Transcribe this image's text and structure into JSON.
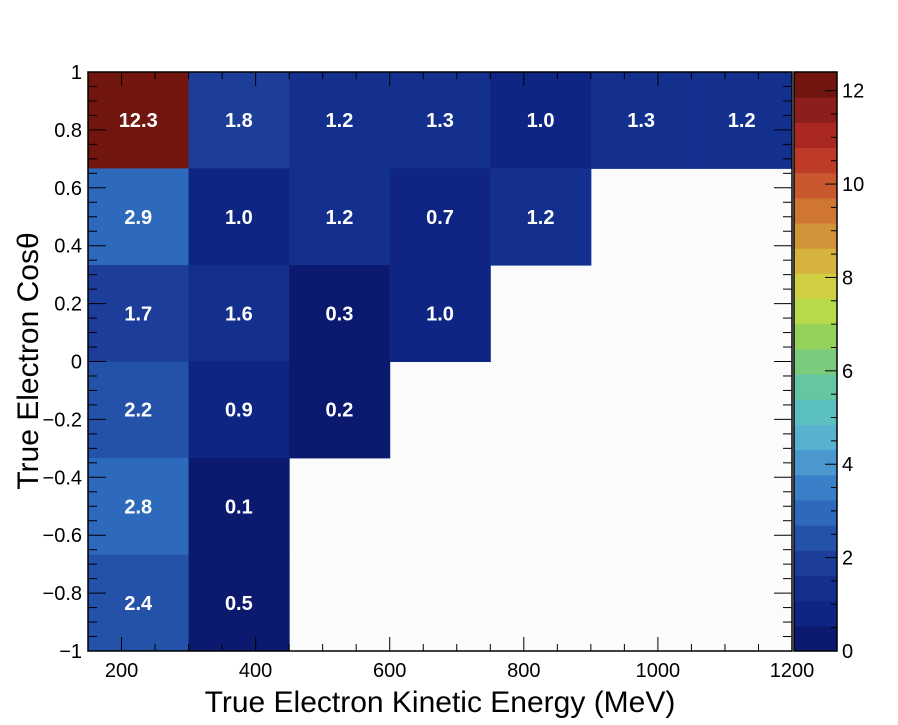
{
  "chart_data": {
    "type": "heatmap",
    "xlabel": "True Electron Kinetic Energy (MeV)",
    "ylabel": "True Electron Cosθ",
    "xlim": [
      150,
      1200
    ],
    "ylim": [
      -1,
      1
    ],
    "x_ticks": [
      "200",
      "400",
      "600",
      "800",
      "1000",
      "1200"
    ],
    "y_ticks": [
      "−1",
      "−0.8",
      "−0.6",
      "−0.4",
      "−0.2",
      "0",
      "0.2",
      "0.4",
      "0.6",
      "0.8",
      "1"
    ],
    "colorbar": {
      "range": [
        0,
        12.4
      ],
      "ticks": [
        "0",
        "2",
        "4",
        "6",
        "8",
        "10",
        "12"
      ]
    },
    "x_bin_edges": [
      150,
      300,
      450,
      600,
      750,
      900,
      1050,
      1200
    ],
    "y_bin_edges": [
      -1,
      -0.667,
      -0.333,
      0,
      0.333,
      0.667,
      1
    ],
    "cells": [
      {
        "x_bin": [
          150,
          300
        ],
        "y_bin": [
          0.667,
          1
        ],
        "value": 12.3,
        "label": "12.3"
      },
      {
        "x_bin": [
          300,
          450
        ],
        "y_bin": [
          0.667,
          1
        ],
        "value": 1.8,
        "label": "1.8"
      },
      {
        "x_bin": [
          450,
          600
        ],
        "y_bin": [
          0.667,
          1
        ],
        "value": 1.2,
        "label": "1.2"
      },
      {
        "x_bin": [
          600,
          750
        ],
        "y_bin": [
          0.667,
          1
        ],
        "value": 1.3,
        "label": "1.3"
      },
      {
        "x_bin": [
          750,
          900
        ],
        "y_bin": [
          0.667,
          1
        ],
        "value": 1.0,
        "label": "1.0"
      },
      {
        "x_bin": [
          900,
          1050
        ],
        "y_bin": [
          0.667,
          1
        ],
        "value": 1.3,
        "label": "1.3"
      },
      {
        "x_bin": [
          1050,
          1200
        ],
        "y_bin": [
          0.667,
          1
        ],
        "value": 1.2,
        "label": "1.2"
      },
      {
        "x_bin": [
          150,
          300
        ],
        "y_bin": [
          0.333,
          0.667
        ],
        "value": 2.9,
        "label": "2.9"
      },
      {
        "x_bin": [
          300,
          450
        ],
        "y_bin": [
          0.333,
          0.667
        ],
        "value": 1.0,
        "label": "1.0"
      },
      {
        "x_bin": [
          450,
          600
        ],
        "y_bin": [
          0.333,
          0.667
        ],
        "value": 1.2,
        "label": "1.2"
      },
      {
        "x_bin": [
          600,
          750
        ],
        "y_bin": [
          0.333,
          0.667
        ],
        "value": 0.7,
        "label": "0.7"
      },
      {
        "x_bin": [
          750,
          900
        ],
        "y_bin": [
          0.333,
          0.667
        ],
        "value": 1.2,
        "label": "1.2"
      },
      {
        "x_bin": [
          150,
          300
        ],
        "y_bin": [
          0,
          0.333
        ],
        "value": 1.7,
        "label": "1.7"
      },
      {
        "x_bin": [
          300,
          450
        ],
        "y_bin": [
          0,
          0.333
        ],
        "value": 1.6,
        "label": "1.6"
      },
      {
        "x_bin": [
          450,
          600
        ],
        "y_bin": [
          0,
          0.333
        ],
        "value": 0.3,
        "label": "0.3"
      },
      {
        "x_bin": [
          600,
          750
        ],
        "y_bin": [
          0,
          0.333
        ],
        "value": 1.0,
        "label": "1.0"
      },
      {
        "x_bin": [
          150,
          300
        ],
        "y_bin": [
          -0.333,
          0
        ],
        "value": 2.2,
        "label": "2.2"
      },
      {
        "x_bin": [
          300,
          450
        ],
        "y_bin": [
          -0.333,
          0
        ],
        "value": 0.9,
        "label": "0.9"
      },
      {
        "x_bin": [
          450,
          600
        ],
        "y_bin": [
          -0.333,
          0
        ],
        "value": 0.2,
        "label": "0.2"
      },
      {
        "x_bin": [
          150,
          300
        ],
        "y_bin": [
          -0.667,
          -0.333
        ],
        "value": 2.8,
        "label": "2.8"
      },
      {
        "x_bin": [
          300,
          450
        ],
        "y_bin": [
          -0.667,
          -0.333
        ],
        "value": 0.1,
        "label": "0.1"
      },
      {
        "x_bin": [
          150,
          300
        ],
        "y_bin": [
          -1,
          -0.667
        ],
        "value": 2.4,
        "label": "2.4"
      },
      {
        "x_bin": [
          300,
          450
        ],
        "y_bin": [
          -1,
          -0.667
        ],
        "value": 0.5,
        "label": "0.5"
      }
    ],
    "palette": [
      "#0b1a6e",
      "#0e2583",
      "#13308f",
      "#1c3d99",
      "#2452a8",
      "#2d6abc",
      "#3a80c8",
      "#4a98cd",
      "#57b1cf",
      "#5cc0c0",
      "#66c6a1",
      "#7ccb7c",
      "#95d25c",
      "#b6da4a",
      "#d1cf44",
      "#d6b23f",
      "#d29438",
      "#cf7633",
      "#c9582e",
      "#be3b28",
      "#a92822",
      "#8c1e1b",
      "#71150f"
    ]
  }
}
